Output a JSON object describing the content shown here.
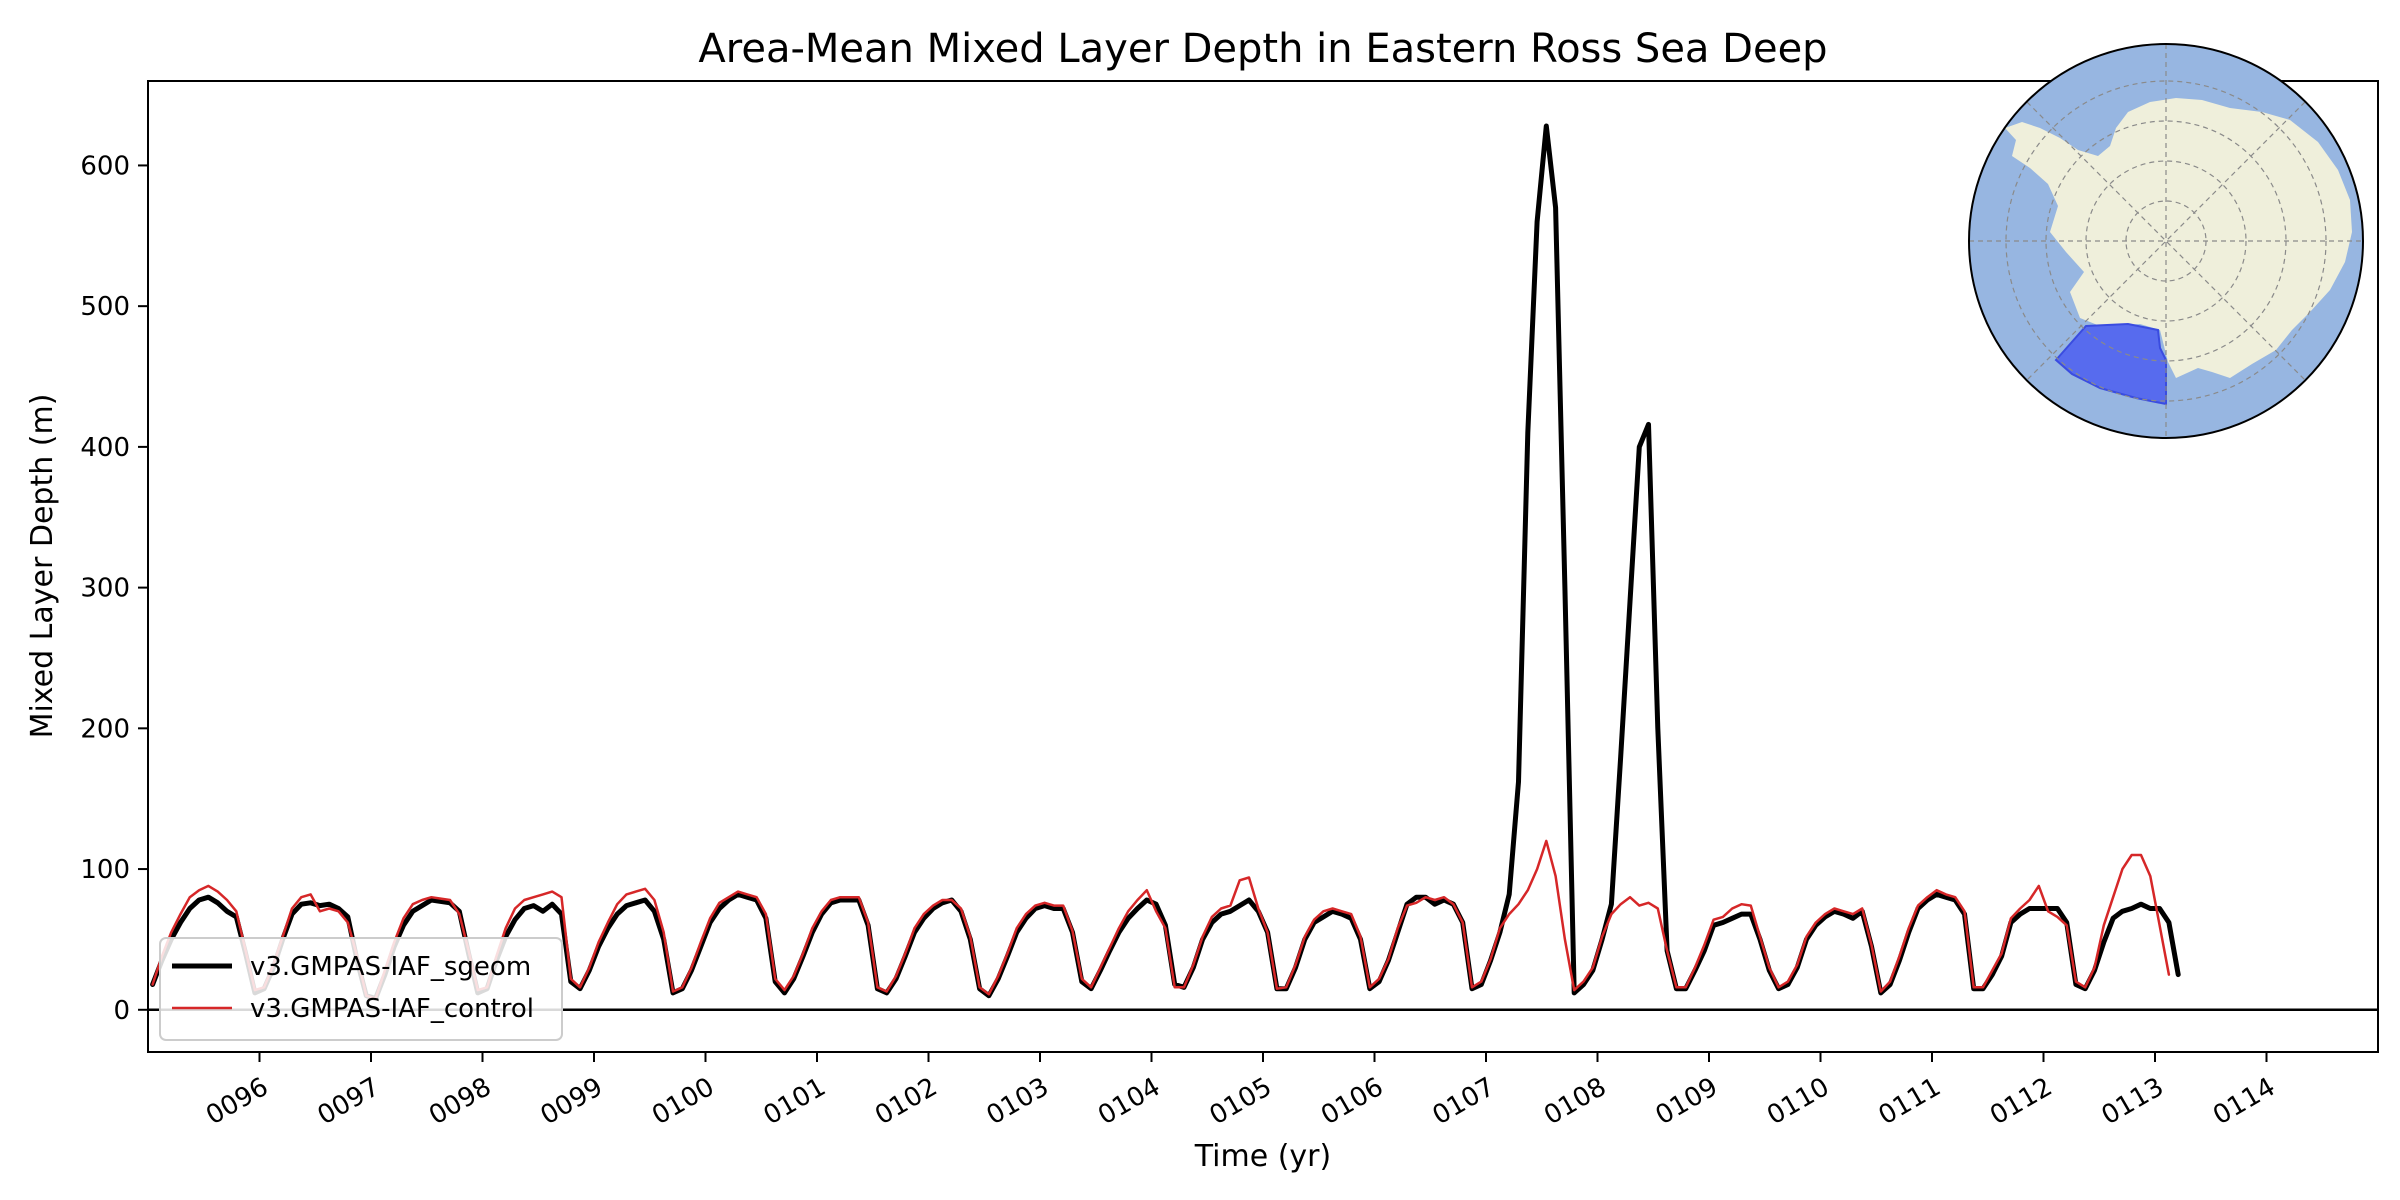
{
  "chart_data": {
    "type": "line",
    "title": "Area-Mean Mixed Layer Depth in Eastern Ross Sea Deep",
    "xlabel": "Time (yr)",
    "ylabel": "Mixed Layer Depth (m)",
    "xlim": [
      95.0,
      115.0
    ],
    "ylim": [
      -30,
      660
    ],
    "yticks": [
      0,
      100,
      200,
      300,
      400,
      500,
      600
    ],
    "xtick_values": [
      96,
      97,
      98,
      99,
      100,
      101,
      102,
      103,
      104,
      105,
      106,
      107,
      108,
      109,
      110,
      111,
      112,
      113,
      114
    ],
    "xtick_labels": [
      "0096",
      "0097",
      "0098",
      "0099",
      "0100",
      "0101",
      "0102",
      "0103",
      "0104",
      "0105",
      "0106",
      "0107",
      "0108",
      "0109",
      "0110",
      "0111",
      "0112",
      "0113",
      "0114"
    ],
    "legend_position": "lower-left",
    "zero_line": true,
    "inset_map": {
      "type": "south-polar-stereographic",
      "region": "Eastern Ross Sea Deep",
      "ocean_color": "#97b6e1",
      "land_color": "#efefdb",
      "region_color": "#4b5ef0"
    },
    "series": [
      {
        "name": "v3.GMPAS-IAF_sgeom",
        "color": "#000000",
        "linewidth": 5,
        "x_start": 95.0417,
        "x_step": 0.08333,
        "values": [
          18,
          35,
          50,
          62,
          72,
          78,
          80,
          76,
          70,
          66,
          40,
          12,
          15,
          30,
          50,
          68,
          75,
          76,
          74,
          75,
          72,
          66,
          35,
          10,
          8,
          25,
          45,
          60,
          70,
          74,
          78,
          77,
          76,
          70,
          40,
          12,
          15,
          35,
          52,
          64,
          72,
          74,
          70,
          75,
          68,
          20,
          15,
          28,
          45,
          58,
          68,
          74,
          76,
          78,
          70,
          50,
          12,
          15,
          28,
          45,
          62,
          72,
          78,
          82,
          80,
          78,
          65,
          20,
          12,
          22,
          38,
          55,
          68,
          76,
          78,
          78,
          78,
          60,
          15,
          12,
          22,
          38,
          55,
          65,
          72,
          76,
          78,
          70,
          50,
          15,
          10,
          22,
          38,
          55,
          65,
          72,
          74,
          72,
          72,
          55,
          20,
          15,
          28,
          42,
          55,
          65,
          72,
          78,
          75,
          60,
          18,
          16,
          30,
          50,
          62,
          68,
          70,
          74,
          78,
          70,
          55,
          15,
          15,
          30,
          50,
          62,
          66,
          70,
          68,
          65,
          50,
          15,
          20,
          35,
          55,
          75,
          80,
          80,
          75,
          78,
          75,
          62,
          15,
          18,
          35,
          55,
          82,
          162,
          410,
          560,
          628,
          570,
          300,
          12,
          18,
          28,
          50,
          75,
          180,
          290,
          400,
          416,
          200,
          42,
          15,
          15,
          28,
          42,
          60,
          62,
          65,
          68,
          68,
          50,
          28,
          15,
          18,
          30,
          50,
          60,
          66,
          70,
          68,
          65,
          70,
          45,
          12,
          18,
          35,
          55,
          72,
          78,
          82,
          80,
          78,
          68,
          15,
          15,
          25,
          38,
          62,
          68,
          72,
          72,
          72,
          72,
          62,
          18,
          15,
          28,
          48,
          65,
          70,
          72,
          75,
          72,
          72,
          62,
          25
        ]
      },
      {
        "name": "v3.GMPAS-IAF_control",
        "color": "#d62728",
        "linewidth": 2.5,
        "x_start": 95.0417,
        "x_step": 0.08333,
        "values": [
          18,
          38,
          55,
          68,
          80,
          85,
          88,
          84,
          78,
          70,
          42,
          14,
          16,
          32,
          52,
          72,
          80,
          82,
          70,
          72,
          70,
          62,
          38,
          10,
          8,
          28,
          48,
          65,
          75,
          78,
          80,
          79,
          78,
          68,
          42,
          14,
          16,
          38,
          58,
          72,
          78,
          80,
          82,
          84,
          80,
          22,
          16,
          30,
          48,
          62,
          75,
          82,
          84,
          86,
          78,
          55,
          13,
          16,
          30,
          48,
          65,
          76,
          80,
          84,
          82,
          80,
          68,
          22,
          14,
          24,
          40,
          58,
          70,
          78,
          80,
          80,
          80,
          62,
          16,
          13,
          24,
          40,
          58,
          68,
          74,
          78,
          78,
          72,
          52,
          16,
          11,
          24,
          40,
          58,
          68,
          74,
          76,
          74,
          74,
          56,
          22,
          16,
          30,
          44,
          58,
          70,
          78,
          85,
          70,
          58,
          16,
          16,
          32,
          52,
          66,
          72,
          74,
          92,
          94,
          72,
          55,
          15,
          16,
          32,
          52,
          64,
          70,
          72,
          70,
          68,
          52,
          16,
          22,
          36,
          58,
          74,
          76,
          80,
          78,
          80,
          75,
          62,
          16,
          20,
          36,
          58,
          68,
          75,
          85,
          100,
          120,
          95,
          50,
          14,
          20,
          30,
          52,
          68,
          75,
          80,
          74,
          76,
          72,
          42,
          16,
          16,
          30,
          46,
          64,
          66,
          72,
          75,
          74,
          52,
          30,
          16,
          20,
          32,
          52,
          62,
          68,
          72,
          70,
          68,
          72,
          46,
          13,
          20,
          38,
          58,
          74,
          80,
          85,
          82,
          80,
          70,
          16,
          16,
          28,
          40,
          65,
          72,
          78,
          88,
          70,
          66,
          60,
          20,
          16,
          30,
          60,
          80,
          100,
          110,
          110,
          95,
          60,
          25
        ]
      }
    ]
  }
}
